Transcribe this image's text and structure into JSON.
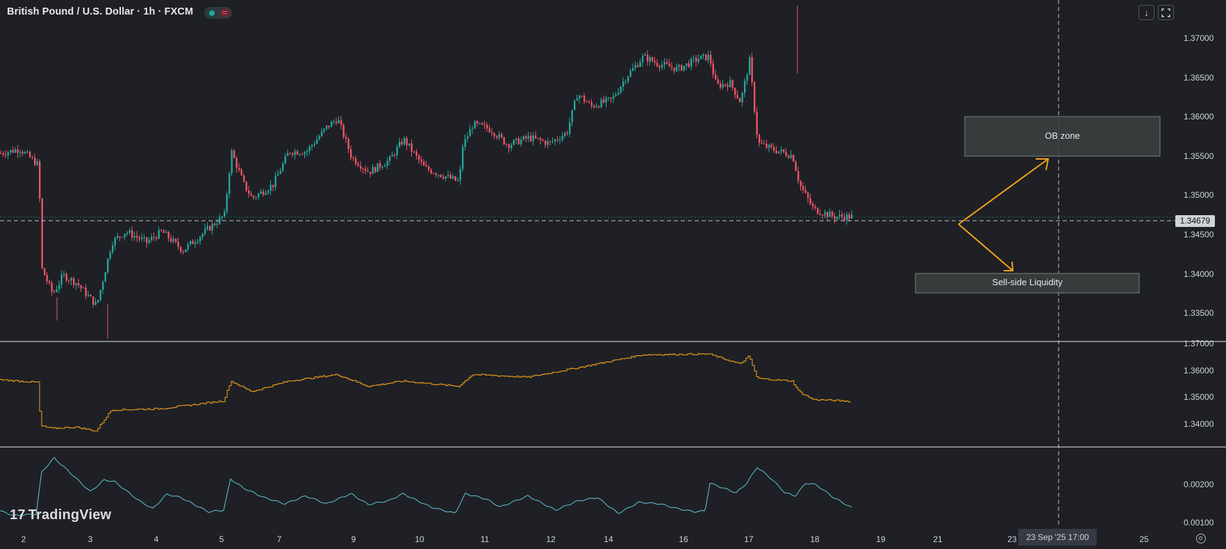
{
  "header": {
    "title": "British Pound / U.S. Dollar · 1h · FXCM",
    "download_icon": "arrow-down-icon",
    "fullscreen_icon": "fullscreen-icon"
  },
  "price_axis": {
    "main_ticks": [
      "1.37000",
      "1.36500",
      "1.36000",
      "1.35500",
      "1.35000",
      "1.34500",
      "1.34000",
      "1.33500"
    ],
    "current_price": "1.34679",
    "sub1_ticks": [
      "1.37000",
      "1.36000",
      "1.35000",
      "1.34000"
    ],
    "sub2_ticks": [
      "0.00200",
      "0.00100"
    ]
  },
  "time_axis": {
    "labels": [
      "2",
      "3",
      "4",
      "5",
      "7",
      "9",
      "10",
      "11",
      "12",
      "14",
      "16",
      "17",
      "18",
      "19",
      "21",
      "23",
      "25"
    ],
    "cursor_label": "23 Sep '25   17:00"
  },
  "annotations": {
    "ob_zone": "OB zone",
    "sell_side": "Sell-side Liquidity"
  },
  "branding": {
    "logo": "TradingView"
  },
  "colors": {
    "bull": "#26a69a",
    "bear": "#ef5366",
    "orange_line": "#f7a21b",
    "teal_line": "#61c6d6",
    "arrow": "#f7a21b"
  },
  "chart_data": [
    {
      "type": "candlestick",
      "title": "British Pound / U.S. Dollar · 1h · FXCM",
      "ylim": [
        1.3318,
        1.3722
      ],
      "current": 1.34679,
      "waypoints": [
        {
          "t": 0,
          "p": 1.3543
        },
        {
          "t": 28,
          "p": 1.3548
        },
        {
          "t": 55,
          "p": 1.3528
        },
        {
          "t": 58,
          "p": 1.3405
        },
        {
          "t": 75,
          "p": 1.3372
        },
        {
          "t": 90,
          "p": 1.3395
        },
        {
          "t": 110,
          "p": 1.3385
        },
        {
          "t": 138,
          "p": 1.3358
        },
        {
          "t": 160,
          "p": 1.3435
        },
        {
          "t": 180,
          "p": 1.3448
        },
        {
          "t": 210,
          "p": 1.3435
        },
        {
          "t": 232,
          "p": 1.3448
        },
        {
          "t": 262,
          "p": 1.3425
        },
        {
          "t": 290,
          "p": 1.3445
        },
        {
          "t": 322,
          "p": 1.3468
        },
        {
          "t": 332,
          "p": 1.3545
        },
        {
          "t": 350,
          "p": 1.3505
        },
        {
          "t": 362,
          "p": 1.3488
        },
        {
          "t": 392,
          "p": 1.3505
        },
        {
          "t": 415,
          "p": 1.3545
        },
        {
          "t": 440,
          "p": 1.3545
        },
        {
          "t": 470,
          "p": 1.3575
        },
        {
          "t": 485,
          "p": 1.3585
        },
        {
          "t": 505,
          "p": 1.3538
        },
        {
          "t": 530,
          "p": 1.352
        },
        {
          "t": 560,
          "p": 1.3535
        },
        {
          "t": 580,
          "p": 1.356
        },
        {
          "t": 610,
          "p": 1.3525
        },
        {
          "t": 640,
          "p": 1.3515
        },
        {
          "t": 660,
          "p": 1.3508
        },
        {
          "t": 665,
          "p": 1.3552
        },
        {
          "t": 680,
          "p": 1.3578
        },
        {
          "t": 705,
          "p": 1.3572
        },
        {
          "t": 730,
          "p": 1.3553
        },
        {
          "t": 760,
          "p": 1.3562
        },
        {
          "t": 790,
          "p": 1.3555
        },
        {
          "t": 815,
          "p": 1.3568
        },
        {
          "t": 830,
          "p": 1.3615
        },
        {
          "t": 850,
          "p": 1.36
        },
        {
          "t": 880,
          "p": 1.3608
        },
        {
          "t": 900,
          "p": 1.3635
        },
        {
          "t": 925,
          "p": 1.366
        },
        {
          "t": 945,
          "p": 1.3652
        },
        {
          "t": 975,
          "p": 1.3645
        },
        {
          "t": 1005,
          "p": 1.3658
        },
        {
          "t": 1020,
          "p": 1.366
        },
        {
          "t": 1030,
          "p": 1.3625
        },
        {
          "t": 1050,
          "p": 1.3628
        },
        {
          "t": 1065,
          "p": 1.3605
        },
        {
          "t": 1078,
          "p": 1.3655
        },
        {
          "t": 1090,
          "p": 1.3555
        },
        {
          "t": 1110,
          "p": 1.3548
        },
        {
          "t": 1140,
          "p": 1.354
        },
        {
          "t": 1150,
          "p": 1.3505
        },
        {
          "t": 1170,
          "p": 1.3475
        },
        {
          "t": 1200,
          "p": 1.3466
        },
        {
          "t": 1226,
          "p": 1.3466
        }
      ],
      "series_names": []
    },
    {
      "type": "line",
      "ylim": [
        1.3325,
        1.3705
      ],
      "note_source": "step line panel",
      "waypoints": [
        {
          "t": 0,
          "p": 1.357
        },
        {
          "t": 55,
          "p": 1.356
        },
        {
          "t": 58,
          "p": 1.3395
        },
        {
          "t": 75,
          "p": 1.3385
        },
        {
          "t": 110,
          "p": 1.339
        },
        {
          "t": 138,
          "p": 1.3375
        },
        {
          "t": 160,
          "p": 1.3455
        },
        {
          "t": 232,
          "p": 1.346
        },
        {
          "t": 322,
          "p": 1.349
        },
        {
          "t": 332,
          "p": 1.3565
        },
        {
          "t": 362,
          "p": 1.3525
        },
        {
          "t": 415,
          "p": 1.3565
        },
        {
          "t": 485,
          "p": 1.359
        },
        {
          "t": 530,
          "p": 1.3545
        },
        {
          "t": 580,
          "p": 1.3565
        },
        {
          "t": 660,
          "p": 1.3545
        },
        {
          "t": 680,
          "p": 1.359
        },
        {
          "t": 760,
          "p": 1.358
        },
        {
          "t": 830,
          "p": 1.3615
        },
        {
          "t": 925,
          "p": 1.3665
        },
        {
          "t": 1020,
          "p": 1.3668
        },
        {
          "t": 1065,
          "p": 1.363
        },
        {
          "t": 1078,
          "p": 1.366
        },
        {
          "t": 1090,
          "p": 1.3575
        },
        {
          "t": 1140,
          "p": 1.3565
        },
        {
          "t": 1150,
          "p": 1.3525
        },
        {
          "t": 1170,
          "p": 1.3495
        },
        {
          "t": 1226,
          "p": 1.3488
        }
      ]
    },
    {
      "type": "line",
      "ylim": [
        0.0007,
        0.0031
      ],
      "waypoints": [
        {
          "t": 0,
          "p": 0.00118
        },
        {
          "t": 20,
          "p": 0.00103
        },
        {
          "t": 52,
          "p": 0.00108
        },
        {
          "t": 60,
          "p": 0.0024
        },
        {
          "t": 78,
          "p": 0.00284
        },
        {
          "t": 100,
          "p": 0.0024
        },
        {
          "t": 130,
          "p": 0.00178
        },
        {
          "t": 150,
          "p": 0.00215
        },
        {
          "t": 165,
          "p": 0.0021
        },
        {
          "t": 200,
          "p": 0.0015
        },
        {
          "t": 220,
          "p": 0.00125
        },
        {
          "t": 240,
          "p": 0.0017
        },
        {
          "t": 260,
          "p": 0.0016
        },
        {
          "t": 300,
          "p": 0.00115
        },
        {
          "t": 322,
          "p": 0.0012
        },
        {
          "t": 332,
          "p": 0.00218
        },
        {
          "t": 350,
          "p": 0.0019
        },
        {
          "t": 380,
          "p": 0.0016
        },
        {
          "t": 410,
          "p": 0.0014
        },
        {
          "t": 440,
          "p": 0.00165
        },
        {
          "t": 470,
          "p": 0.0014
        },
        {
          "t": 505,
          "p": 0.00172
        },
        {
          "t": 530,
          "p": 0.00138
        },
        {
          "t": 560,
          "p": 0.0015
        },
        {
          "t": 580,
          "p": 0.00172
        },
        {
          "t": 620,
          "p": 0.0013
        },
        {
          "t": 655,
          "p": 0.0011
        },
        {
          "t": 670,
          "p": 0.00172
        },
        {
          "t": 700,
          "p": 0.00155
        },
        {
          "t": 720,
          "p": 0.0013
        },
        {
          "t": 760,
          "p": 0.00165
        },
        {
          "t": 800,
          "p": 0.0012
        },
        {
          "t": 830,
          "p": 0.00148
        },
        {
          "t": 860,
          "p": 0.0016
        },
        {
          "t": 890,
          "p": 0.0011
        },
        {
          "t": 920,
          "p": 0.00145
        },
        {
          "t": 950,
          "p": 0.0014
        },
        {
          "t": 975,
          "p": 0.00125
        },
        {
          "t": 1000,
          "p": 0.00115
        },
        {
          "t": 1015,
          "p": 0.00118
        },
        {
          "t": 1022,
          "p": 0.00205
        },
        {
          "t": 1060,
          "p": 0.00175
        },
        {
          "t": 1075,
          "p": 0.00205
        },
        {
          "t": 1090,
          "p": 0.00255
        },
        {
          "t": 1110,
          "p": 0.0022
        },
        {
          "t": 1130,
          "p": 0.00175
        },
        {
          "t": 1145,
          "p": 0.00165
        },
        {
          "t": 1160,
          "p": 0.00205
        },
        {
          "t": 1175,
          "p": 0.002
        },
        {
          "t": 1200,
          "p": 0.0016
        },
        {
          "t": 1226,
          "p": 0.00128
        }
      ]
    }
  ]
}
